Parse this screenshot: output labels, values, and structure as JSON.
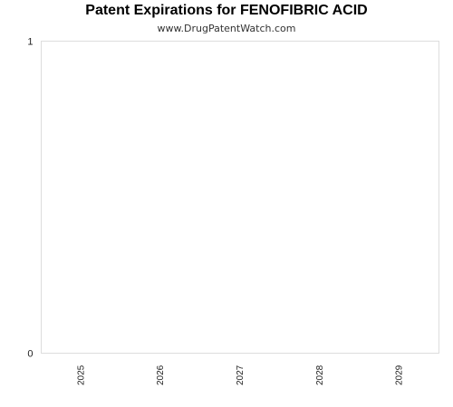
{
  "chart_data": {
    "type": "bar",
    "title": "Patent Expirations for FENOFIBRIC ACID",
    "subtitle": "www.DrugPatentWatch.com",
    "categories": [
      "2025",
      "2026",
      "2027",
      "2028",
      "2029"
    ],
    "values": [
      0,
      0,
      0,
      0,
      0
    ],
    "xlabel": "",
    "ylabel": "",
    "ylim": [
      0,
      1
    ],
    "y_ticks": [
      "0",
      "1"
    ],
    "grid": false,
    "legend": "none",
    "colors": {
      "plot_border": "#dddddd",
      "axis_text": "#222222"
    }
  }
}
